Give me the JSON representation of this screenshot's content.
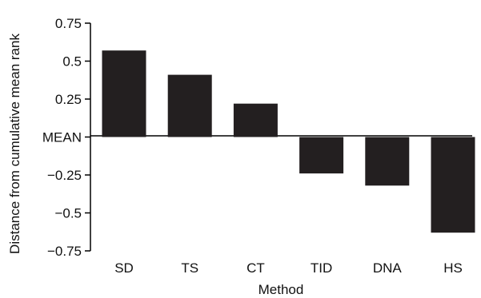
{
  "chart_data": {
    "type": "bar",
    "categories": [
      "SD",
      "TS",
      "CT",
      "TID",
      "DNA",
      "HS"
    ],
    "values": [
      0.57,
      0.41,
      0.22,
      -0.24,
      -0.32,
      -0.63
    ],
    "xlabel": "Method",
    "ylabel": "Distance from cumulative mean rank",
    "ylim": [
      -0.75,
      0.75
    ],
    "yticks": [
      0.75,
      0.5,
      0.25,
      0,
      -0.25,
      -0.5,
      -0.75
    ],
    "ytick_labels": [
      "0.75",
      "0.5",
      "0.25",
      "MEAN",
      "−0.25",
      "−0.5",
      "−0.75"
    ],
    "bar_color": "#231f20",
    "grid": false,
    "legend": "none"
  }
}
